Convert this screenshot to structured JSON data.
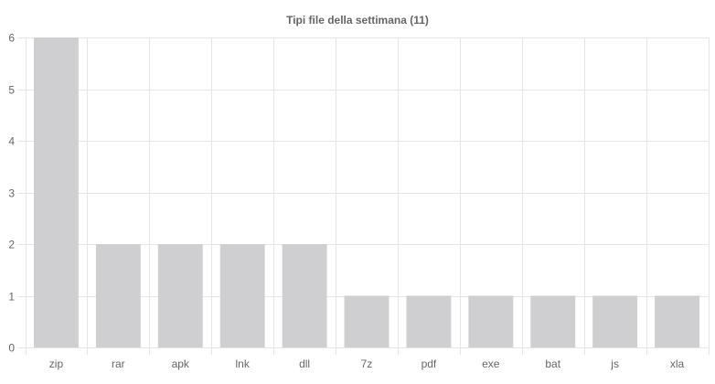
{
  "chart_data": {
    "type": "bar",
    "title": "Tipi file della settimana (11)",
    "xlabel": "",
    "ylabel": "",
    "categories": [
      "zip",
      "rar",
      "apk",
      "lnk",
      "dll",
      "7z",
      "pdf",
      "exe",
      "bat",
      "js",
      "xla"
    ],
    "values": [
      6,
      2,
      2,
      2,
      2,
      1,
      1,
      1,
      1,
      1,
      1
    ],
    "ylim": [
      0,
      6
    ],
    "yticks": [
      "0",
      "1",
      "2",
      "3",
      "4",
      "5",
      "6"
    ],
    "grid": true,
    "legend": "none",
    "colors": {
      "bar": "#cfcfd1",
      "grid": "#e5e5e5",
      "text": "#666666"
    }
  }
}
